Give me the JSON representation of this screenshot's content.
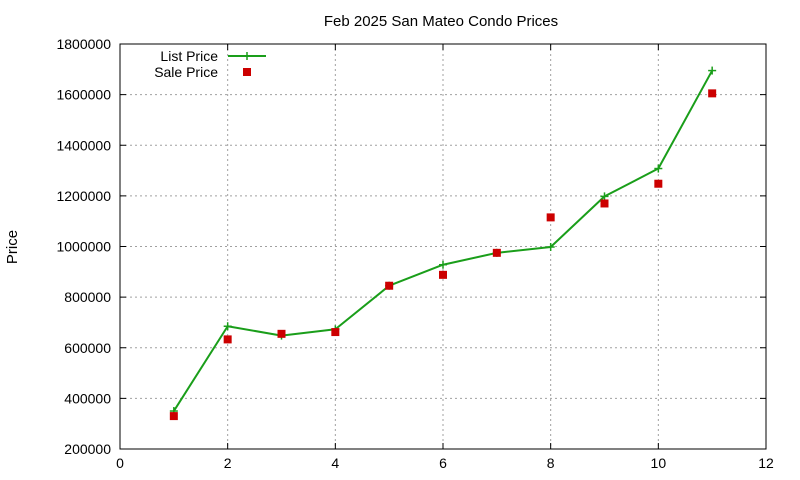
{
  "chart_data": {
    "type": "line",
    "title": "Feb 2025 San Mateo Condo Prices",
    "xlabel": "",
    "ylabel": "Price",
    "xlim": [
      0,
      12
    ],
    "ylim": [
      200000,
      1800000
    ],
    "x_ticks": [
      0,
      2,
      4,
      6,
      8,
      10,
      12
    ],
    "y_ticks": [
      200000,
      400000,
      600000,
      800000,
      1000000,
      1200000,
      1400000,
      1600000,
      1800000
    ],
    "grid": true,
    "legend_position": "top-left",
    "series": [
      {
        "name": "List Price",
        "style": "linespoints",
        "marker": "plus",
        "color": "#1a9e1a",
        "x": [
          1,
          2,
          3,
          4,
          5,
          6,
          7,
          8,
          9,
          10,
          11
        ],
        "values": [
          350000,
          685000,
          648000,
          673000,
          845000,
          928000,
          975000,
          998000,
          1198000,
          1308000,
          1695000
        ]
      },
      {
        "name": "Sale Price",
        "style": "points",
        "marker": "square",
        "color": "#cc0000",
        "x": [
          1,
          2,
          3,
          4,
          5,
          6,
          7,
          8,
          9,
          10,
          11
        ],
        "values": [
          330000,
          633000,
          655000,
          662000,
          845000,
          888000,
          975000,
          1115000,
          1170000,
          1248000,
          1605000
        ]
      }
    ]
  }
}
